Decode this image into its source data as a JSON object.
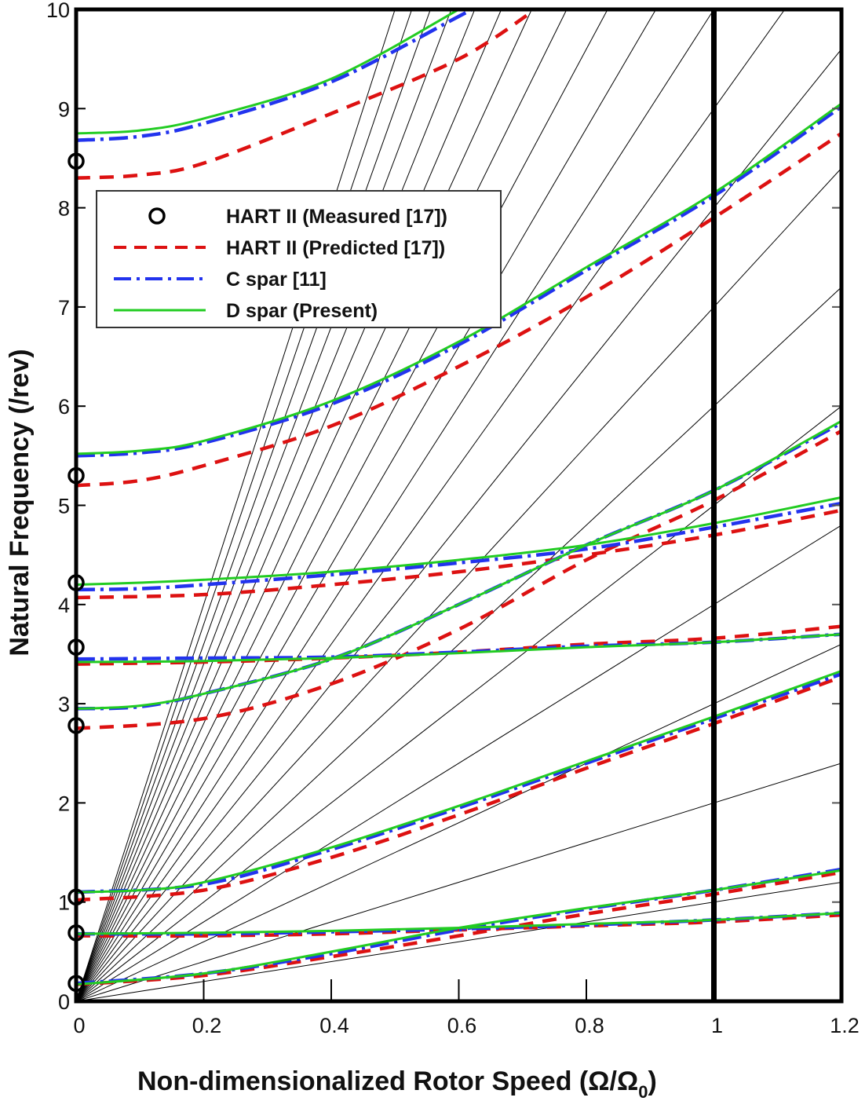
{
  "chart_data": {
    "type": "line",
    "title": "",
    "xlabel": "Non-dimensionalized Rotor Speed (Ω/Ω0)",
    "xlabel_main": "Non-dimensionalized Rotor Speed (Ω/Ω",
    "xlabel_sub": "0",
    "xlabel_close": ")",
    "ylabel": "Natural Frequency (/rev)",
    "xlim": [
      0,
      1.2
    ],
    "ylim": [
      0,
      10
    ],
    "xticks": [
      "0",
      "0.2",
      "0.4",
      "0.6",
      "0.8",
      "1",
      "1.2"
    ],
    "xtick_values": [
      0,
      0.2,
      0.4,
      0.6,
      0.8,
      1.0,
      1.2
    ],
    "yticks": [
      "0",
      "1",
      "2",
      "3",
      "4",
      "5",
      "6",
      "7",
      "8",
      "9",
      "10"
    ],
    "ytick_values": [
      0,
      1,
      2,
      3,
      4,
      5,
      6,
      7,
      8,
      9,
      10
    ],
    "reference_line_x": 1.0,
    "per_rev_lines": [
      1,
      2,
      3,
      4,
      5,
      6,
      7,
      8,
      9,
      10,
      11,
      12,
      13,
      14,
      15,
      16,
      17,
      18,
      19,
      20
    ],
    "legend": {
      "placement": "upper-left",
      "entries": [
        "HART II (Measured [17])",
        "HART II (Predicted [17])",
        "C spar [11]",
        "D spar (Present)"
      ]
    },
    "colors": {
      "measured": "#000000",
      "predicted": "#dd1111",
      "c_spar": "#2233ee",
      "d_spar": "#22cc22",
      "fan": "#000000"
    },
    "series": [
      {
        "name": "HART II (Measured [17])",
        "style": "marker",
        "x": [
          0,
          0,
          0,
          0,
          0,
          0,
          0,
          0
        ],
        "y": [
          8.47,
          5.3,
          4.22,
          3.57,
          2.78,
          1.05,
          0.69,
          0.18
        ]
      },
      {
        "name": "HART II (Predicted [17])",
        "style": "dashed",
        "modes": [
          {
            "x": [
              0,
              0.2,
              0.4,
              0.6,
              0.8,
              1.0,
              1.2
            ],
            "y": [
              0.17,
              0.26,
              0.45,
              0.66,
              0.88,
              1.08,
              1.3
            ]
          },
          {
            "x": [
              0,
              0.2,
              0.4,
              0.6,
              0.8,
              1.0,
              1.2
            ],
            "y": [
              0.66,
              0.66,
              0.68,
              0.72,
              0.76,
              0.8,
              0.87
            ]
          },
          {
            "x": [
              0,
              0.2,
              0.4,
              0.6,
              0.8,
              1.0,
              1.2
            ],
            "y": [
              1.02,
              1.12,
              1.45,
              1.88,
              2.35,
              2.8,
              3.27
            ]
          },
          {
            "x": [
              0,
              0.2,
              0.4,
              0.6,
              0.8,
              1.0,
              1.2
            ],
            "y": [
              2.75,
              2.85,
              3.2,
              3.75,
              4.45,
              5.05,
              5.75
            ]
          },
          {
            "x": [
              0,
              0.2,
              0.4,
              0.6,
              0.8,
              1.0,
              1.2
            ],
            "y": [
              3.4,
              3.42,
              3.46,
              3.52,
              3.6,
              3.66,
              3.78
            ]
          },
          {
            "x": [
              0,
              0.2,
              0.4,
              0.6,
              0.8,
              1.0,
              1.2
            ],
            "y": [
              4.07,
              4.1,
              4.2,
              4.33,
              4.5,
              4.7,
              4.95
            ]
          },
          {
            "x": [
              0,
              0.1,
              0.2,
              0.4,
              0.6,
              0.8,
              1.0,
              1.2
            ],
            "y": [
              5.2,
              5.25,
              5.4,
              5.8,
              6.4,
              7.1,
              7.9,
              8.75
            ]
          },
          {
            "x": [
              0,
              0.1,
              0.2,
              0.4,
              0.6,
              0.72
            ],
            "y": [
              8.3,
              8.33,
              8.45,
              8.95,
              9.5,
              10.0
            ]
          }
        ]
      },
      {
        "name": "C spar [11]",
        "style": "dash-dot",
        "modes": [
          {
            "x": [
              0,
              0.2,
              0.4,
              0.6,
              0.8,
              1.0,
              1.2
            ],
            "y": [
              0.18,
              0.28,
              0.48,
              0.72,
              0.93,
              1.12,
              1.33
            ]
          },
          {
            "x": [
              0,
              0.2,
              0.4,
              0.6,
              0.8,
              1.0,
              1.2
            ],
            "y": [
              0.68,
              0.68,
              0.7,
              0.73,
              0.77,
              0.82,
              0.89
            ]
          },
          {
            "x": [
              0,
              0.2,
              0.4,
              0.6,
              0.8,
              1.0,
              1.2
            ],
            "y": [
              1.1,
              1.18,
              1.53,
              1.95,
              2.4,
              2.85,
              3.3
            ]
          },
          {
            "x": [
              0,
              0.1,
              0.2,
              0.4,
              0.6,
              0.8,
              1.0,
              1.2
            ],
            "y": [
              2.95,
              2.97,
              3.1,
              3.45,
              4.0,
              4.6,
              5.15,
              5.83
            ]
          },
          {
            "x": [
              0,
              0.2,
              0.4,
              0.6,
              0.8,
              1.0,
              1.2
            ],
            "y": [
              3.45,
              3.46,
              3.47,
              3.52,
              3.58,
              3.62,
              3.7
            ]
          },
          {
            "x": [
              0,
              0.1,
              0.2,
              0.4,
              0.6,
              0.8,
              1.0,
              1.2
            ],
            "y": [
              4.15,
              4.16,
              4.2,
              4.3,
              4.42,
              4.56,
              4.78,
              5.02
            ]
          },
          {
            "x": [
              0,
              0.1,
              0.2,
              0.4,
              0.6,
              0.8,
              1.0,
              1.2
            ],
            "y": [
              5.5,
              5.53,
              5.63,
              6.02,
              6.62,
              7.37,
              8.12,
              9.02
            ]
          },
          {
            "x": [
              0,
              0.1,
              0.2,
              0.4,
              0.6,
              0.62
            ],
            "y": [
              8.68,
              8.72,
              8.85,
              9.27,
              9.93,
              10.0
            ]
          }
        ]
      },
      {
        "name": "D spar (Present)",
        "style": "solid",
        "modes": [
          {
            "x": [
              0,
              0.2,
              0.4,
              0.6,
              0.8,
              1.0,
              1.2
            ],
            "y": [
              0.17,
              0.28,
              0.5,
              0.74,
              0.94,
              1.12,
              1.32
            ]
          },
          {
            "x": [
              0,
              0.2,
              0.4,
              0.6,
              0.8,
              1.0,
              1.2
            ],
            "y": [
              0.68,
              0.69,
              0.71,
              0.74,
              0.78,
              0.82,
              0.89
            ]
          },
          {
            "x": [
              0,
              0.1,
              0.2,
              0.4,
              0.6,
              0.8,
              1.0,
              1.2
            ],
            "y": [
              1.1,
              1.12,
              1.2,
              1.55,
              1.97,
              2.42,
              2.87,
              3.33
            ]
          },
          {
            "x": [
              0,
              0.1,
              0.2,
              0.4,
              0.6,
              0.8,
              1.0,
              1.2
            ],
            "y": [
              2.95,
              2.98,
              3.1,
              3.45,
              4.0,
              4.6,
              5.15,
              5.85
            ]
          },
          {
            "x": [
              0,
              0.2,
              0.4,
              0.6,
              0.8,
              1.0,
              1.2
            ],
            "y": [
              3.42,
              3.43,
              3.46,
              3.51,
              3.57,
              3.62,
              3.7
            ]
          },
          {
            "x": [
              0,
              0.1,
              0.2,
              0.4,
              0.6,
              0.8,
              1.0,
              1.2
            ],
            "y": [
              4.2,
              4.22,
              4.25,
              4.33,
              4.45,
              4.6,
              4.82,
              5.08
            ]
          },
          {
            "x": [
              0,
              0.1,
              0.2,
              0.4,
              0.6,
              0.8,
              1.0,
              1.2
            ],
            "y": [
              5.52,
              5.55,
              5.65,
              6.05,
              6.65,
              7.4,
              8.15,
              9.05
            ]
          },
          {
            "x": [
              0,
              0.1,
              0.2,
              0.4,
              0.6
            ],
            "y": [
              8.75,
              8.78,
              8.9,
              9.3,
              10.0
            ]
          }
        ]
      }
    ]
  }
}
